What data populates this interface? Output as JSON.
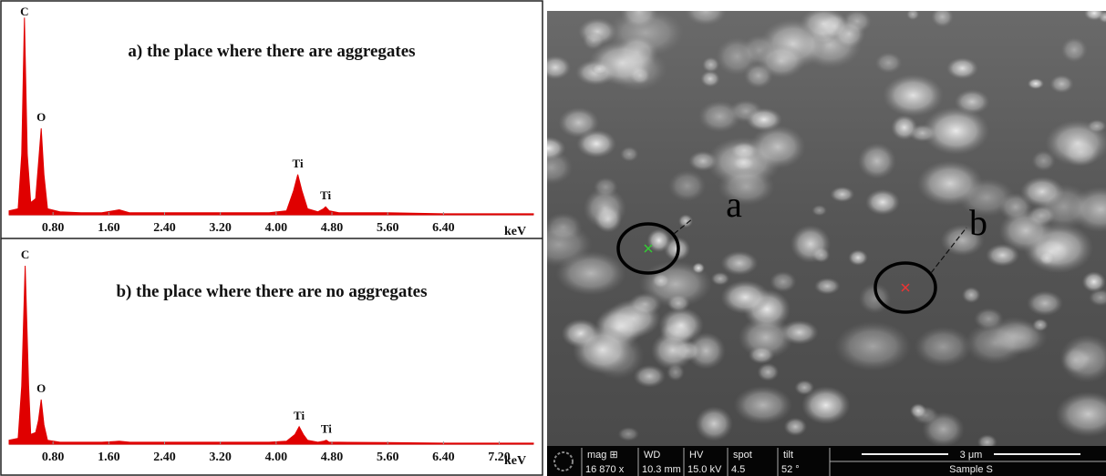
{
  "chart_data": [
    {
      "type": "area",
      "title": "a) the place where there are aggregates",
      "x_label": "keV",
      "color": "#e00000",
      "x": [
        0.17,
        0.3,
        0.35,
        0.39,
        0.43,
        0.48,
        0.55,
        0.59,
        0.63,
        0.67,
        0.72,
        0.9,
        1.2,
        1.5,
        1.75,
        1.9,
        2.5,
        3.2,
        3.9,
        4.15,
        4.25,
        4.31,
        4.37,
        4.45,
        4.6,
        4.68,
        4.71,
        4.76,
        4.9,
        5.6,
        6.4,
        7.2,
        7.69
      ],
      "values": [
        2,
        3,
        30,
        98,
        30,
        6,
        8,
        25,
        43,
        20,
        3,
        1.5,
        1,
        1,
        2.5,
        1,
        1,
        1,
        1,
        2,
        12,
        20,
        12,
        3,
        1.5,
        3,
        4,
        2,
        1,
        1,
        0.5,
        0.5,
        0.5
      ],
      "xlim": [
        0.17,
        7.69
      ],
      "ylim": [
        0,
        100
      ],
      "xticks": [
        {
          "value": 0.8,
          "label": "0.80"
        },
        {
          "value": 1.6,
          "label": "1.60"
        },
        {
          "value": 2.4,
          "label": "2.40"
        },
        {
          "value": 3.2,
          "label": "3.20"
        },
        {
          "value": 4.0,
          "label": "4.00"
        },
        {
          "value": 4.8,
          "label": "4.80"
        },
        {
          "value": 5.6,
          "label": "5.60"
        },
        {
          "value": 6.4,
          "label": "6.40"
        }
      ],
      "annotations": [
        {
          "text": "C",
          "x": 0.39,
          "y": 98
        },
        {
          "text": "O",
          "x": 0.63,
          "y": 43
        },
        {
          "text": "Ti",
          "x": 4.31,
          "y": 20
        },
        {
          "text": "Ti",
          "x": 4.71,
          "y": 4
        }
      ]
    },
    {
      "type": "area",
      "title": "b) the place where there are no aggregates",
      "x_label": "keV",
      "color": "#e00000",
      "x": [
        0.17,
        0.3,
        0.35,
        0.4,
        0.45,
        0.48,
        0.55,
        0.59,
        0.63,
        0.67,
        0.72,
        0.9,
        1.2,
        1.5,
        1.75,
        1.9,
        2.5,
        3.2,
        3.9,
        4.15,
        4.27,
        4.33,
        4.39,
        4.45,
        4.6,
        4.68,
        4.72,
        4.76,
        4.9,
        5.6,
        6.4,
        7.2,
        7.69
      ],
      "values": [
        2,
        3,
        30,
        92,
        30,
        5,
        6,
        12,
        23,
        10,
        2,
        1,
        1,
        1,
        1.5,
        1,
        1,
        1,
        1,
        1.5,
        5,
        9,
        5,
        2,
        1,
        1.5,
        2,
        1,
        1,
        0.8,
        0.5,
        0.5,
        0.5
      ],
      "xlim": [
        0.17,
        7.69
      ],
      "ylim": [
        0,
        100
      ],
      "xticks": [
        {
          "value": 0.8,
          "label": "0.80"
        },
        {
          "value": 1.6,
          "label": "1.60"
        },
        {
          "value": 2.4,
          "label": "2.40"
        },
        {
          "value": 3.2,
          "label": "3.20"
        },
        {
          "value": 4.0,
          "label": "4.00"
        },
        {
          "value": 4.8,
          "label": "4.80"
        },
        {
          "value": 5.6,
          "label": "5.60"
        },
        {
          "value": 6.4,
          "label": "6.40"
        },
        {
          "value": 7.2,
          "label": "7.20"
        }
      ],
      "annotations": [
        {
          "text": "C",
          "x": 0.4,
          "y": 92
        },
        {
          "text": "O",
          "x": 0.63,
          "y": 23
        },
        {
          "text": "Ti",
          "x": 4.33,
          "y": 9
        },
        {
          "text": "Ti",
          "x": 4.72,
          "y": 2
        }
      ]
    }
  ],
  "sem_image": {
    "labels": [
      "a",
      "b"
    ],
    "info_bar": [
      {
        "header": "mag ⊞",
        "value": "16 870 x"
      },
      {
        "header": "WD",
        "value": "10.3 mm"
      },
      {
        "header": "HV",
        "value": "15.0 kV"
      },
      {
        "header": "spot",
        "value": "4.5"
      },
      {
        "header": "tilt",
        "value": "52 °"
      }
    ],
    "scale_bar": "3 μm",
    "sample": "Sample S"
  }
}
